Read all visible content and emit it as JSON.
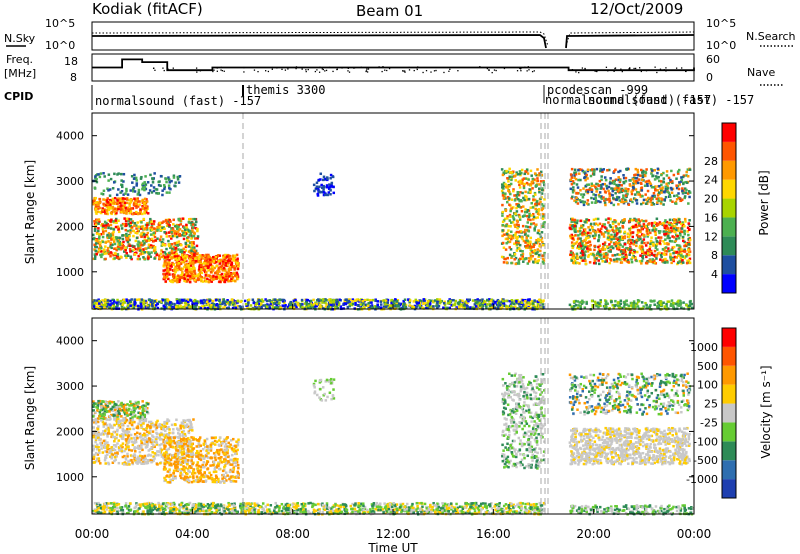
{
  "header": {
    "station": "Kodiak (fitACF)",
    "beam": "Beam 01",
    "date": "12/Oct/2009"
  },
  "top_panels": {
    "nsky_label": "N.Sky",
    "nsearch_label": "N.Search",
    "freq_label_1": "Freq.",
    "freq_label_2": "[MHz]",
    "nave_label": "Nave",
    "cpid_label": "CPID",
    "noise_ticks_left": [
      "10^5",
      "10^0"
    ],
    "noise_ticks_right": [
      "10^5",
      "10^0"
    ],
    "freq_ticks": [
      "18",
      "8"
    ],
    "nave_ticks": [
      "60",
      "0"
    ],
    "cpid_segments": [
      {
        "label": "normalsound (fast) -157"
      },
      {
        "label": "themis 3300"
      },
      {
        "label": "pcodescan -999"
      },
      {
        "label": "normalsound (fast) -157"
      },
      {
        "label": "normalsound (fast) -157"
      }
    ]
  },
  "power_panel": {
    "ylabel": "Slant Range [km]",
    "yticks": [
      "1000",
      "2000",
      "3000",
      "4000"
    ],
    "colorbar_label": "Power [dB]",
    "colorbar_ticks": [
      "4",
      "8",
      "12",
      "16",
      "20",
      "24",
      "28"
    ],
    "colors": [
      "#0000ff",
      "#1e4fa0",
      "#2e8b57",
      "#4cb050",
      "#a8d400",
      "#ffd700",
      "#ff9900",
      "#ff5500",
      "#ff0000"
    ]
  },
  "velocity_panel": {
    "ylabel": "Slant Range [km]",
    "yticks": [
      "1000",
      "2000",
      "3000",
      "4000"
    ],
    "colorbar_label": "Velocity [m s⁻¹]",
    "colorbar_ticks": [
      "1000",
      "500",
      "100",
      "25",
      "-25",
      "-100",
      "-500",
      "-1000"
    ],
    "colors": [
      "#1e3fb0",
      "#2e6eb0",
      "#2e8b57",
      "#66cc33",
      "#c8c8c8",
      "#ffcc00",
      "#ff9900",
      "#ff5500",
      "#ff0000"
    ]
  },
  "xaxis": {
    "label": "Time UT",
    "ticks": [
      "00:00",
      "04:00",
      "08:00",
      "12:00",
      "16:00",
      "20:00",
      "00:00"
    ]
  },
  "chart_data": [
    {
      "type": "line",
      "title": "Kodiak (fitACF) Beam 01 12/Oct/2009",
      "series": [
        {
          "name": "N.Sky"
        },
        {
          "name": "N.Search"
        }
      ],
      "ylabel": "N.Sky"
    },
    {
      "type": "line",
      "series": [
        {
          "name": "Freq. [MHz]",
          "x": [
            0,
            1.2,
            2.0,
            3.0,
            4.8,
            18.1,
            19.0,
            24
          ],
          "values": [
            13,
            16,
            15,
            12,
            13,
            13,
            12,
            13
          ]
        },
        {
          "name": "Nave"
        }
      ],
      "ylabel": "Freq. [MHz]",
      "ylim": [
        8,
        18
      ]
    },
    {
      "type": "heatmap",
      "xlabel": "Time UT",
      "ylabel": "Slant Range [km]",
      "xlim": [
        0,
        24
      ],
      "ylim": [
        180,
        4500
      ],
      "colorbar": {
        "label": "Power [dB]",
        "ticks": [
          4,
          8,
          12,
          16,
          20,
          24,
          28
        ]
      }
    },
    {
      "type": "heatmap",
      "xlabel": "Time UT",
      "ylabel": "Slant Range [km]",
      "xlim": [
        0,
        24
      ],
      "ylim": [
        180,
        4500
      ],
      "colorbar": {
        "label": "Velocity [m s-1]",
        "ticks": [
          1000,
          500,
          100,
          25,
          -25,
          -100,
          -500,
          -1000
        ]
      }
    }
  ]
}
